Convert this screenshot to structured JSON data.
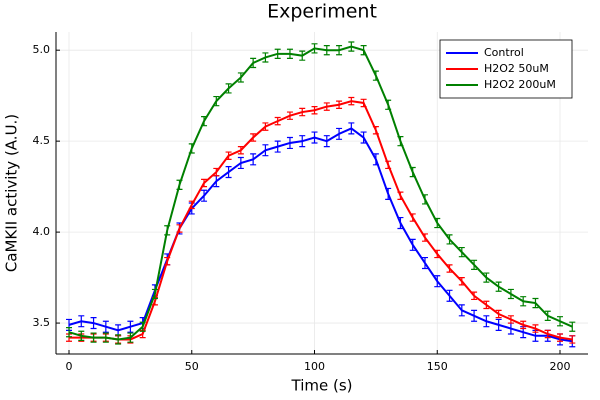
{
  "chart_data": {
    "type": "line",
    "title": "Experiment",
    "x_label": "Time (s)",
    "y_label": "CaMKII activity (A.U.)",
    "x": [
      0,
      5,
      10,
      15,
      20,
      25,
      30,
      35,
      40,
      45,
      50,
      55,
      60,
      65,
      70,
      75,
      80,
      85,
      90,
      95,
      100,
      105,
      110,
      115,
      120,
      125,
      130,
      135,
      140,
      145,
      150,
      155,
      160,
      165,
      170,
      175,
      180,
      185,
      190,
      195,
      200,
      205
    ],
    "series": [
      {
        "name": "Control",
        "color": "#0000ff",
        "error": 0.03,
        "values": [
          3.49,
          3.51,
          3.5,
          3.48,
          3.46,
          3.48,
          3.5,
          3.68,
          3.85,
          4.02,
          4.13,
          4.2,
          4.28,
          4.33,
          4.38,
          4.4,
          4.45,
          4.47,
          4.49,
          4.5,
          4.52,
          4.5,
          4.54,
          4.57,
          4.52,
          4.4,
          4.21,
          4.05,
          3.93,
          3.83,
          3.73,
          3.65,
          3.57,
          3.54,
          3.51,
          3.49,
          3.47,
          3.45,
          3.43,
          3.43,
          3.41,
          3.4
        ]
      },
      {
        "name": "H2O2 50uM",
        "color": "#ff0000",
        "error": 0.02,
        "values": [
          3.42,
          3.42,
          3.42,
          3.42,
          3.41,
          3.41,
          3.44,
          3.62,
          3.84,
          4.02,
          4.15,
          4.27,
          4.33,
          4.42,
          4.45,
          4.52,
          4.58,
          4.61,
          4.64,
          4.66,
          4.67,
          4.69,
          4.7,
          4.72,
          4.71,
          4.56,
          4.37,
          4.2,
          4.08,
          3.97,
          3.88,
          3.8,
          3.73,
          3.65,
          3.6,
          3.55,
          3.52,
          3.49,
          3.47,
          3.44,
          3.42,
          3.41
        ]
      },
      {
        "name": "H2O2 200uM",
        "color": "#008000",
        "error": 0.025,
        "values": [
          3.45,
          3.43,
          3.42,
          3.42,
          3.41,
          3.42,
          3.48,
          3.66,
          4.01,
          4.26,
          4.46,
          4.61,
          4.72,
          4.79,
          4.85,
          4.93,
          4.96,
          4.98,
          4.98,
          4.97,
          5.01,
          5.0,
          5.0,
          5.02,
          5.0,
          4.86,
          4.7,
          4.5,
          4.33,
          4.18,
          4.05,
          3.96,
          3.89,
          3.82,
          3.75,
          3.7,
          3.66,
          3.62,
          3.61,
          3.54,
          3.51,
          3.48
        ]
      }
    ],
    "xlim": [
      -5.3,
      211.4
    ],
    "ylim": [
      3.33,
      5.1
    ],
    "xticks": [
      0,
      50,
      100,
      150,
      200
    ],
    "yticks": [
      3.5,
      {
        "value": 4,
        "label": "4.0"
      },
      4.5,
      {
        "value": 5,
        "label": "5.0"
      }
    ],
    "grid": true,
    "legend": "top-right"
  }
}
